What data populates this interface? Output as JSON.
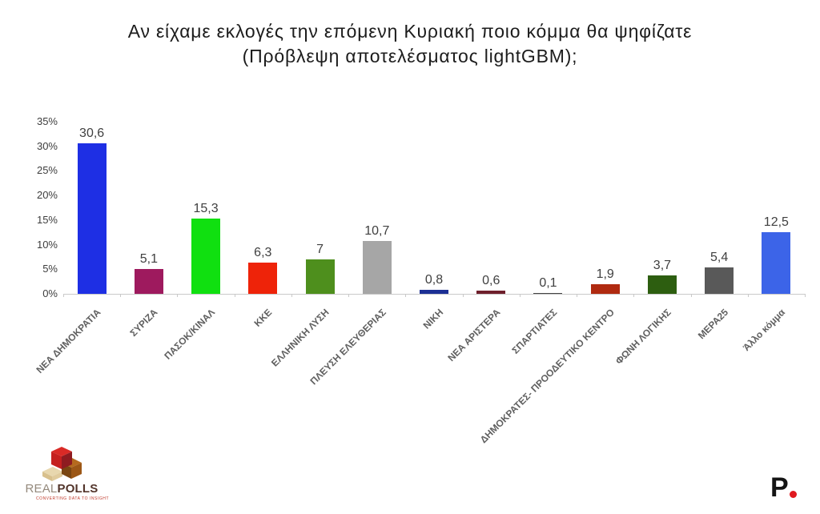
{
  "title": {
    "line1": "Αν είχαμε εκλογές την επόμενη Κυριακή ποιο κόμμα θα ψηφίζατε",
    "line2": "(Πρόβλεψη αποτελέσματος lightGBM);"
  },
  "chart_data": {
    "type": "bar",
    "title": "Αν είχαμε εκλογές την επόμενη Κυριακή ποιο κόμμα θα ψηφίζατε (Πρόβλεψη αποτελέσματος lightGBM);",
    "categories": [
      "ΝΕΑ ΔΗΜΟΚΡΑΤΙΑ",
      "ΣΥΡΙΖΑ",
      "ΠΑΣΟΚ/ΚΙΝΑΛ",
      "ΚΚΕ",
      "ΕΛΛΗΝΙΚΗ ΛΥΣΗ",
      "ΠΛΕΥΣΗ ΕΛΕΥΘΕΡΙΑΣ",
      "ΝΙΚΗ",
      "ΝΕΑ ΑΡΙΣΤΕΡΑ",
      "ΣΠΑΡΤΙΑΤΕΣ",
      "ΔΗΜΟΚΡΑΤΕΣ- ΠΡΟΟΔΕΥΤΙΚΟ ΚΕΝΤΡΟ",
      "ΦΩΝΗ ΛΟΓΙΚΗΣ",
      "ΜΕΡΑ25",
      "Άλλο κόμμα"
    ],
    "values": [
      30.6,
      5.1,
      15.3,
      6.3,
      7,
      10.7,
      0.8,
      0.6,
      0.1,
      1.9,
      3.7,
      5.4,
      12.5
    ],
    "value_labels": [
      "30,6",
      "5,1",
      "15,3",
      "6,3",
      "7",
      "10,7",
      "0,8",
      "0,6",
      "0,1",
      "1,9",
      "3,7",
      "5,4",
      "12,5"
    ],
    "bar_colors": [
      "#1e2fe4",
      "#9e1a5e",
      "#10e010",
      "#ee2309",
      "#4e8f1d",
      "#a6a6a6",
      "#1c2f94",
      "#6e1f2b",
      "#444444",
      "#b02a10",
      "#2d5e10",
      "#595959",
      "#3c64e8"
    ],
    "y_tick_labels": [
      "0%",
      "5%",
      "10%",
      "15%",
      "20%",
      "25%",
      "30%",
      "35%"
    ],
    "y_tick_values": [
      0,
      5,
      10,
      15,
      20,
      25,
      30,
      35
    ],
    "ylim": [
      0,
      35
    ],
    "xlabel": "",
    "ylabel": "",
    "grid": false,
    "legend": "none"
  },
  "branding": {
    "realpolls": {
      "real": "REAL",
      "polls": "POLLS",
      "tagline": "CONVERTING DATA TO INSIGHT",
      "cube_red": "#c5201f",
      "cube_brown": "#a05a1a",
      "cube_beige": "#e8d7ae"
    },
    "p_logo": {
      "letter": "P",
      "dot_color": "#e0191f"
    }
  }
}
